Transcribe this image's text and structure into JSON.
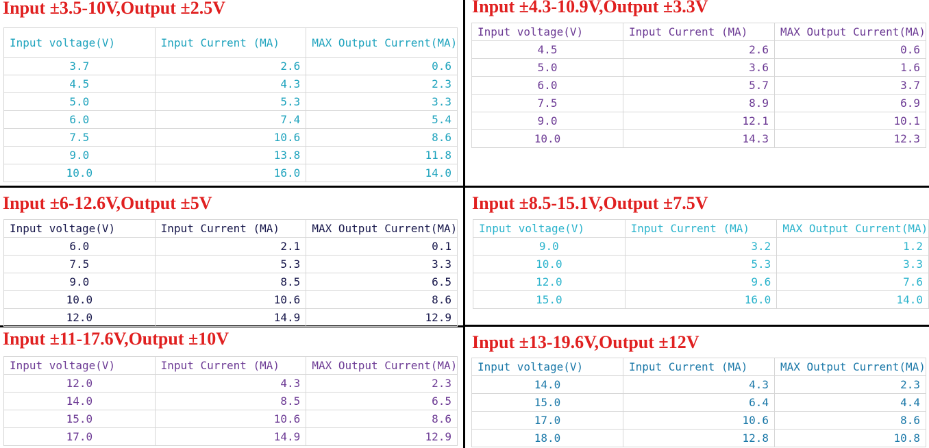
{
  "panels": [
    {
      "title": "Input ±3.5-10V,Output ±2.5V",
      "header": [
        "Input voltage(V)",
        "Input Current (MA)",
        "MAX Output Current(MA)"
      ],
      "rows": [
        [
          "3.7",
          "2.6",
          "0.6"
        ],
        [
          "4.5",
          "4.3",
          "2.3"
        ],
        [
          "5.0",
          "5.3",
          "3.3"
        ],
        [
          "6.0",
          "7.4",
          "5.4"
        ],
        [
          "7.5",
          "10.6",
          "8.6"
        ],
        [
          "9.0",
          "13.8",
          "11.8"
        ],
        [
          "10.0",
          "16.0",
          "14.0"
        ]
      ]
    },
    {
      "title": "Input ±4.3-10.9V,Output ±3.3V",
      "header": [
        "Input voltage(V)",
        "Input Current (MA)",
        "MAX Output Current(MA)"
      ],
      "rows": [
        [
          "4.5",
          "2.6",
          "0.6"
        ],
        [
          "5.0",
          "3.6",
          "1.6"
        ],
        [
          "6.0",
          "5.7",
          "3.7"
        ],
        [
          "7.5",
          "8.9",
          "6.9"
        ],
        [
          "9.0",
          "12.1",
          "10.1"
        ],
        [
          "10.0",
          "14.3",
          "12.3"
        ]
      ]
    },
    {
      "title": "Input ±6-12.6V,Output ±5V",
      "header": [
        "Input voltage(V)",
        "Input Current (MA)",
        "MAX Output Current(MA)"
      ],
      "rows": [
        [
          "6.0",
          "2.1",
          "0.1"
        ],
        [
          "7.5",
          "5.3",
          "3.3"
        ],
        [
          "9.0",
          "8.5",
          "6.5"
        ],
        [
          "10.0",
          "10.6",
          "8.6"
        ],
        [
          "12.0",
          "14.9",
          "12.9"
        ]
      ]
    },
    {
      "title": "Input ±8.5-15.1V,Output ±7.5V",
      "header": [
        "Input voltage(V)",
        "Input Current (MA)",
        "MAX Output Current(MA)"
      ],
      "rows": [
        [
          "9.0",
          "3.2",
          "1.2"
        ],
        [
          "10.0",
          "5.3",
          "3.3"
        ],
        [
          "12.0",
          "9.6",
          "7.6"
        ],
        [
          "15.0",
          "16.0",
          "14.0"
        ]
      ]
    },
    {
      "title": "Input ±11-17.6V,Output ±10V",
      "header": [
        "Input voltage(V)",
        "Input Current (MA)",
        "MAX Output Current(MA)"
      ],
      "rows": [
        [
          "12.0",
          "4.3",
          "2.3"
        ],
        [
          "14.0",
          "8.5",
          "6.5"
        ],
        [
          "15.0",
          "10.6",
          "8.6"
        ],
        [
          "17.0",
          "14.9",
          "12.9"
        ]
      ]
    },
    {
      "title": "Input ±13-19.6V,Output ±12V",
      "header": [
        "Input voltage(V)",
        "Input Current (MA)",
        "MAX Output Current(MA)"
      ],
      "rows": [
        [
          "14.0",
          "4.3",
          "2.3"
        ],
        [
          "15.0",
          "6.4",
          "4.4"
        ],
        [
          "17.0",
          "10.6",
          "8.6"
        ],
        [
          "18.0",
          "12.8",
          "10.8"
        ]
      ]
    }
  ]
}
